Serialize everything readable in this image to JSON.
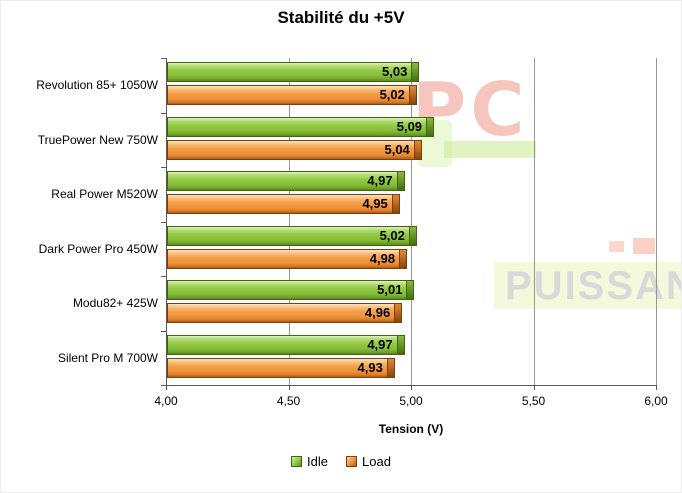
{
  "title": "Stabilité du +5V",
  "chart_data": {
    "type": "bar",
    "orientation": "horizontal",
    "title": "Stabilité du +5V",
    "xlabel": "Tension (V)",
    "xlim": [
      4.0,
      6.0
    ],
    "xticks": [
      {
        "value": 4.0,
        "label": "4,00"
      },
      {
        "value": 4.5,
        "label": "4,50"
      },
      {
        "value": 5.0,
        "label": "5,00"
      },
      {
        "value": 5.5,
        "label": "5,50"
      },
      {
        "value": 6.0,
        "label": "6,00"
      }
    ],
    "categories": [
      "Revolution 85+ 1050W",
      "TruePower New 750W",
      "Real Power M520W",
      "Dark Power Pro 450W",
      "Modu82+ 425W",
      "Silent Pro M 700W"
    ],
    "series": [
      {
        "name": "Idle",
        "color": "#8cc63e",
        "values": [
          5.03,
          5.09,
          4.97,
          5.02,
          5.01,
          4.97
        ],
        "labels": [
          "5,03",
          "5,09",
          "4,97",
          "5,02",
          "5,01",
          "4,97"
        ]
      },
      {
        "name": "Load",
        "color": "#f0913b",
        "values": [
          5.02,
          5.04,
          4.95,
          4.98,
          4.96,
          4.93
        ],
        "labels": [
          "5,02",
          "5,04",
          "4,95",
          "4,98",
          "4,96",
          "4,93"
        ]
      }
    ],
    "grid": "vertical-gridlines",
    "legend_position": "bottom-center"
  },
  "watermark": {
    "pc": "PC",
    "puissance": "PUISSAN"
  }
}
